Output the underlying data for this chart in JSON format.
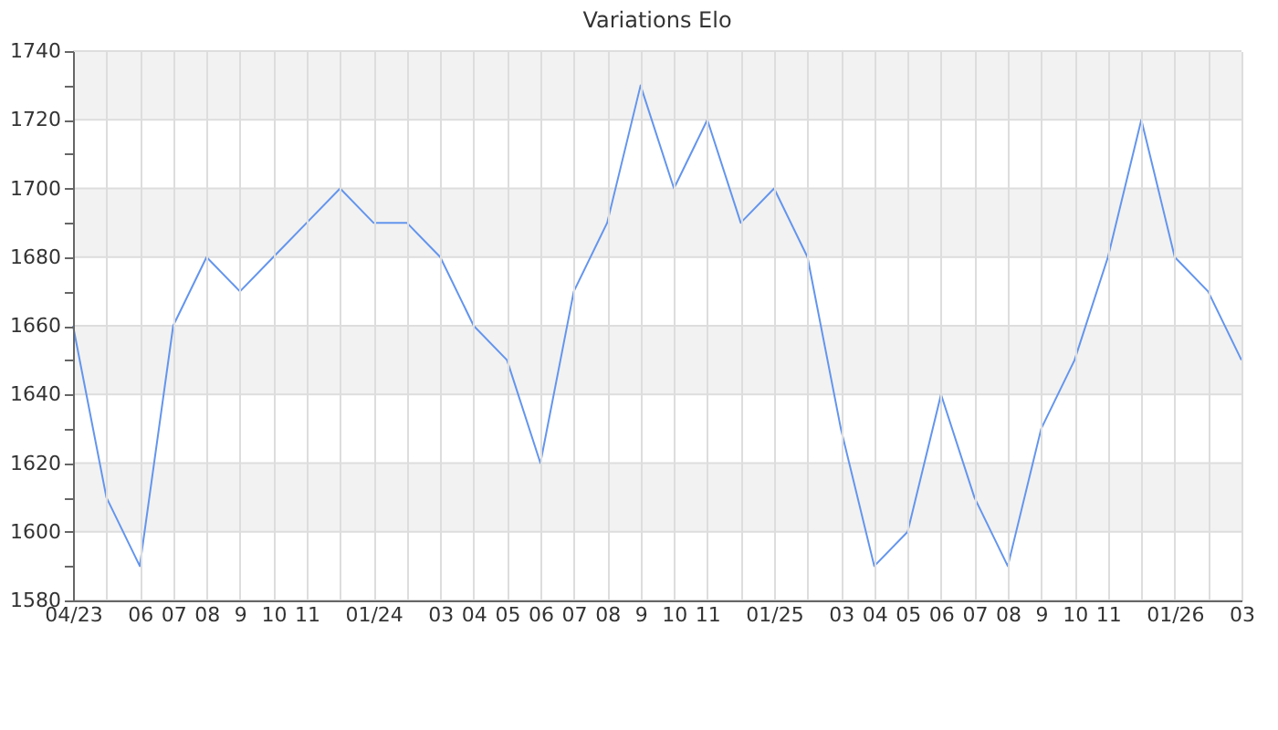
{
  "chart_data": {
    "type": "line",
    "title": "Variations Elo",
    "categories": [
      "04/23",
      null,
      "06",
      "07",
      "08",
      "9",
      "10",
      "11",
      null,
      "01/24",
      null,
      "03",
      "04",
      "05",
      "06",
      "07",
      "08",
      "9",
      "10",
      "11",
      null,
      "01/25",
      null,
      "03",
      "04",
      "05",
      "06",
      "07",
      "08",
      "9",
      "10",
      "11",
      null,
      "01/26",
      null,
      "03"
    ],
    "series": [
      {
        "color": "#6495ed",
        "values": [
          1660,
          1610,
          1590,
          1660,
          1680,
          1670,
          1680,
          1690,
          1700,
          1690,
          1690,
          1680,
          1660,
          1650,
          1620,
          1670,
          1690,
          1730,
          1700,
          1720,
          1690,
          1700,
          1680,
          1630,
          1590,
          1600,
          1640,
          1610,
          1590,
          1630,
          1650,
          1680,
          1720,
          1680,
          1670,
          1650
        ]
      }
    ],
    "ylim": [
      1580,
      1740
    ],
    "yticks": [
      1580,
      {
        "value": 1590,
        "label": null
      },
      1600,
      {
        "value": 1610,
        "label": null
      },
      1620,
      {
        "value": 1630,
        "label": null
      },
      1640,
      {
        "value": 1650,
        "label": null
      },
      1660,
      {
        "value": 1670,
        "label": null
      },
      1680,
      {
        "value": 1690,
        "label": null
      },
      1700,
      {
        "value": 1710,
        "label": null
      },
      1720,
      {
        "value": 1730,
        "label": null
      },
      1740
    ],
    "bands": [
      {
        "axis": "y",
        "from": 1600,
        "to": 1620,
        "color": "#f2f2f2"
      },
      {
        "axis": "y",
        "from": 1640,
        "to": 1660,
        "color": "#f2f2f2"
      },
      {
        "axis": "y",
        "from": 1680,
        "to": 1700,
        "color": "#f2f2f2"
      },
      {
        "axis": "y",
        "from": 1720,
        "to": 1740,
        "color": "#f2f2f2"
      }
    ],
    "grid": true,
    "marker": "none",
    "line_style": "solid"
  }
}
